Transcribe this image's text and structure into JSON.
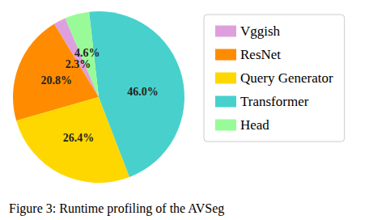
{
  "chart_data": {
    "type": "pie",
    "title": "Figure 3: Runtime profiling of the AVSeg",
    "categories": [
      "Vggish",
      "ResNet",
      "Query Generator",
      "Transformer",
      "Head"
    ],
    "values": [
      2.3,
      20.8,
      26.4,
      46.0,
      4.6
    ],
    "value_labels": [
      "2.3%",
      "20.8%",
      "26.4%",
      "46.0%",
      "4.6%"
    ],
    "colors": [
      "#dda0dd",
      "#ff8c00",
      "#ffd700",
      "#48d1cc",
      "#98fb98"
    ],
    "data_labels": true,
    "legend": "right"
  }
}
